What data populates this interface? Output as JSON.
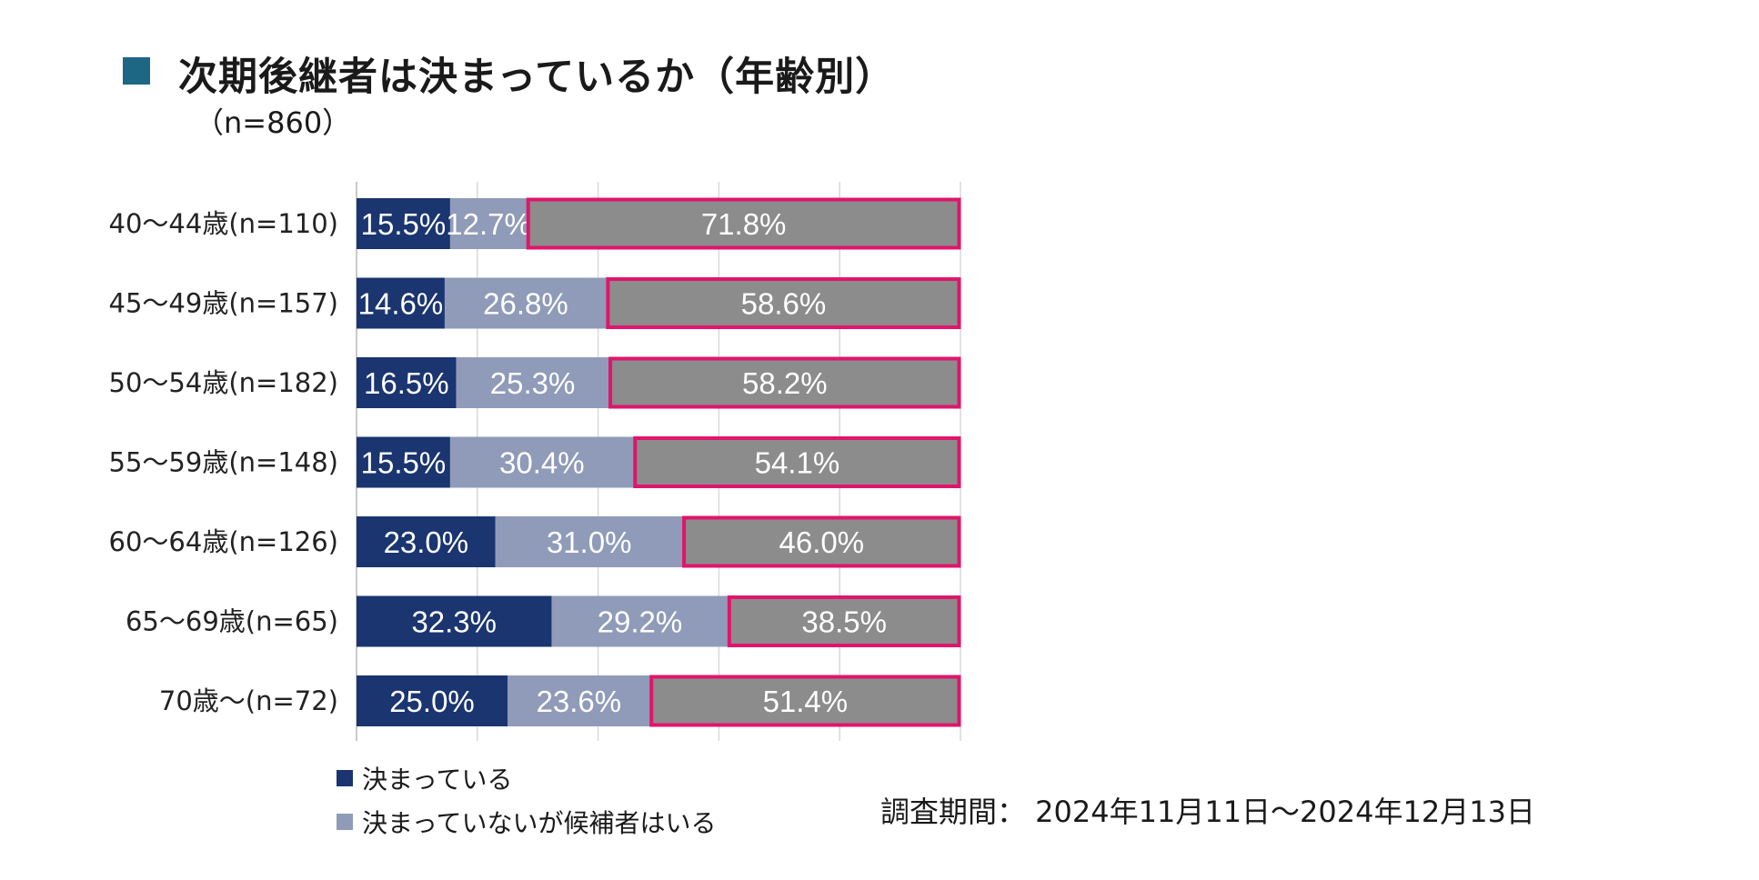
{
  "title": "次期後継者は決まっているか（年齢別）",
  "subtitle": "（n=860）",
  "survey_period": "調査期間： 2024年11月11日～2024年12月13日",
  "colors": {
    "title_square": "#1d6785",
    "decided": "#1a3570",
    "candidate": "#8f9bb8",
    "undecided": "#8c8c8c",
    "highlight": "#e0156b",
    "grid": "#d9d9d9"
  },
  "chart_data": {
    "type": "bar",
    "orientation": "horizontal",
    "stacked": "100%",
    "categories": [
      "40～44歳(n=110)",
      "45～49歳(n=157)",
      "50～54歳(n=182)",
      "55～59歳(n=148)",
      "60～64歳(n=126)",
      "65～69歳(n=65)",
      "70歳～(n=72)"
    ],
    "series": [
      {
        "name": "決まっている",
        "values": [
          15.5,
          14.6,
          16.5,
          15.5,
          23.0,
          32.3,
          25.0
        ]
      },
      {
        "name": "決まっていないが候補者はいる",
        "values": [
          12.7,
          26.8,
          25.3,
          30.4,
          31.0,
          29.2,
          23.6
        ]
      },
      {
        "name": "",
        "values": [
          71.8,
          58.6,
          58.2,
          54.1,
          46.0,
          38.5,
          51.4
        ]
      }
    ],
    "value_labels": [
      [
        "15.5%",
        "12.7%",
        "71.8%"
      ],
      [
        "14.6%",
        "26.8%",
        "58.6%"
      ],
      [
        "16.5%",
        "25.3%",
        "58.2%"
      ],
      [
        "15.5%",
        "30.4%",
        "54.1%"
      ],
      [
        "23.0%",
        "31.0%",
        "46.0%"
      ],
      [
        "32.3%",
        "29.2%",
        "38.5%"
      ],
      [
        "25.0%",
        "23.6%",
        "51.4%"
      ]
    ],
    "xlim": [
      0,
      100
    ],
    "grid": true,
    "highlight_series": 2,
    "legend": [
      "決まっている",
      "決まっていないが候補者はいる"
    ],
    "legend_position": "bottom"
  }
}
